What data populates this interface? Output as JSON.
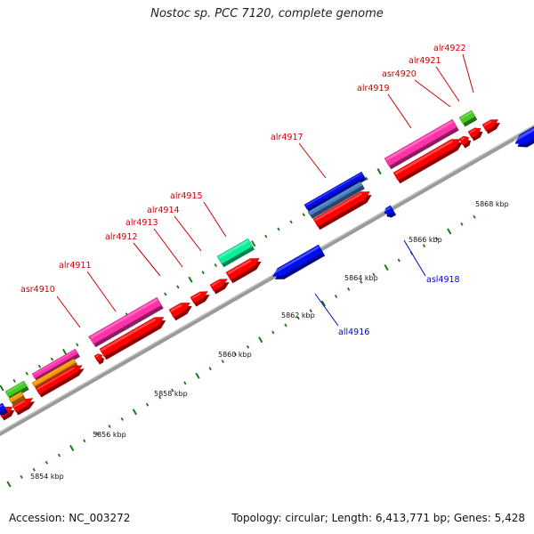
{
  "title": "Nostoc sp. PCC 7120, complete genome",
  "footer": {
    "accession": "Accession: NC_003272",
    "summary": "Topology: circular; Length: 6,413,771 bp; Genes: 5,428"
  },
  "colors": {
    "backbone": "#9a9a9a",
    "forward_label": "#cc0000",
    "reverse_label": "#0000cc",
    "tick": "#1a7a1a",
    "red": "#ff0000",
    "magenta": "#ff33aa",
    "blue": "#0011ee",
    "steel": "#4a7fc0",
    "orange": "#ff9900",
    "green": "#44cc22",
    "mint": "#11ee99"
  },
  "ruler": {
    "start_kbp": 5853.4,
    "end_kbp": 5869.4,
    "major_labels": [
      "5854 kbp",
      "5856 kbp",
      "5858 kbp",
      "5860 kbp",
      "5862 kbp",
      "5864 kbp",
      "5866 kbp",
      "5868 kbp"
    ]
  },
  "gene_labels": [
    {
      "name": "asr4910",
      "strand": "+"
    },
    {
      "name": "alr4911",
      "strand": "+"
    },
    {
      "name": "alr4912",
      "strand": "+"
    },
    {
      "name": "alr4913",
      "strand": "+"
    },
    {
      "name": "alr4914",
      "strand": "+"
    },
    {
      "name": "alr4915",
      "strand": "+"
    },
    {
      "name": "all4916",
      "strand": "-"
    },
    {
      "name": "alr4917",
      "strand": "+"
    },
    {
      "name": "asl4918",
      "strand": "-"
    },
    {
      "name": "alr4919",
      "strand": "+"
    },
    {
      "name": "asr4920",
      "strand": "+"
    },
    {
      "name": "alr4921",
      "strand": "+"
    },
    {
      "name": "alr4922",
      "strand": "+"
    }
  ]
}
